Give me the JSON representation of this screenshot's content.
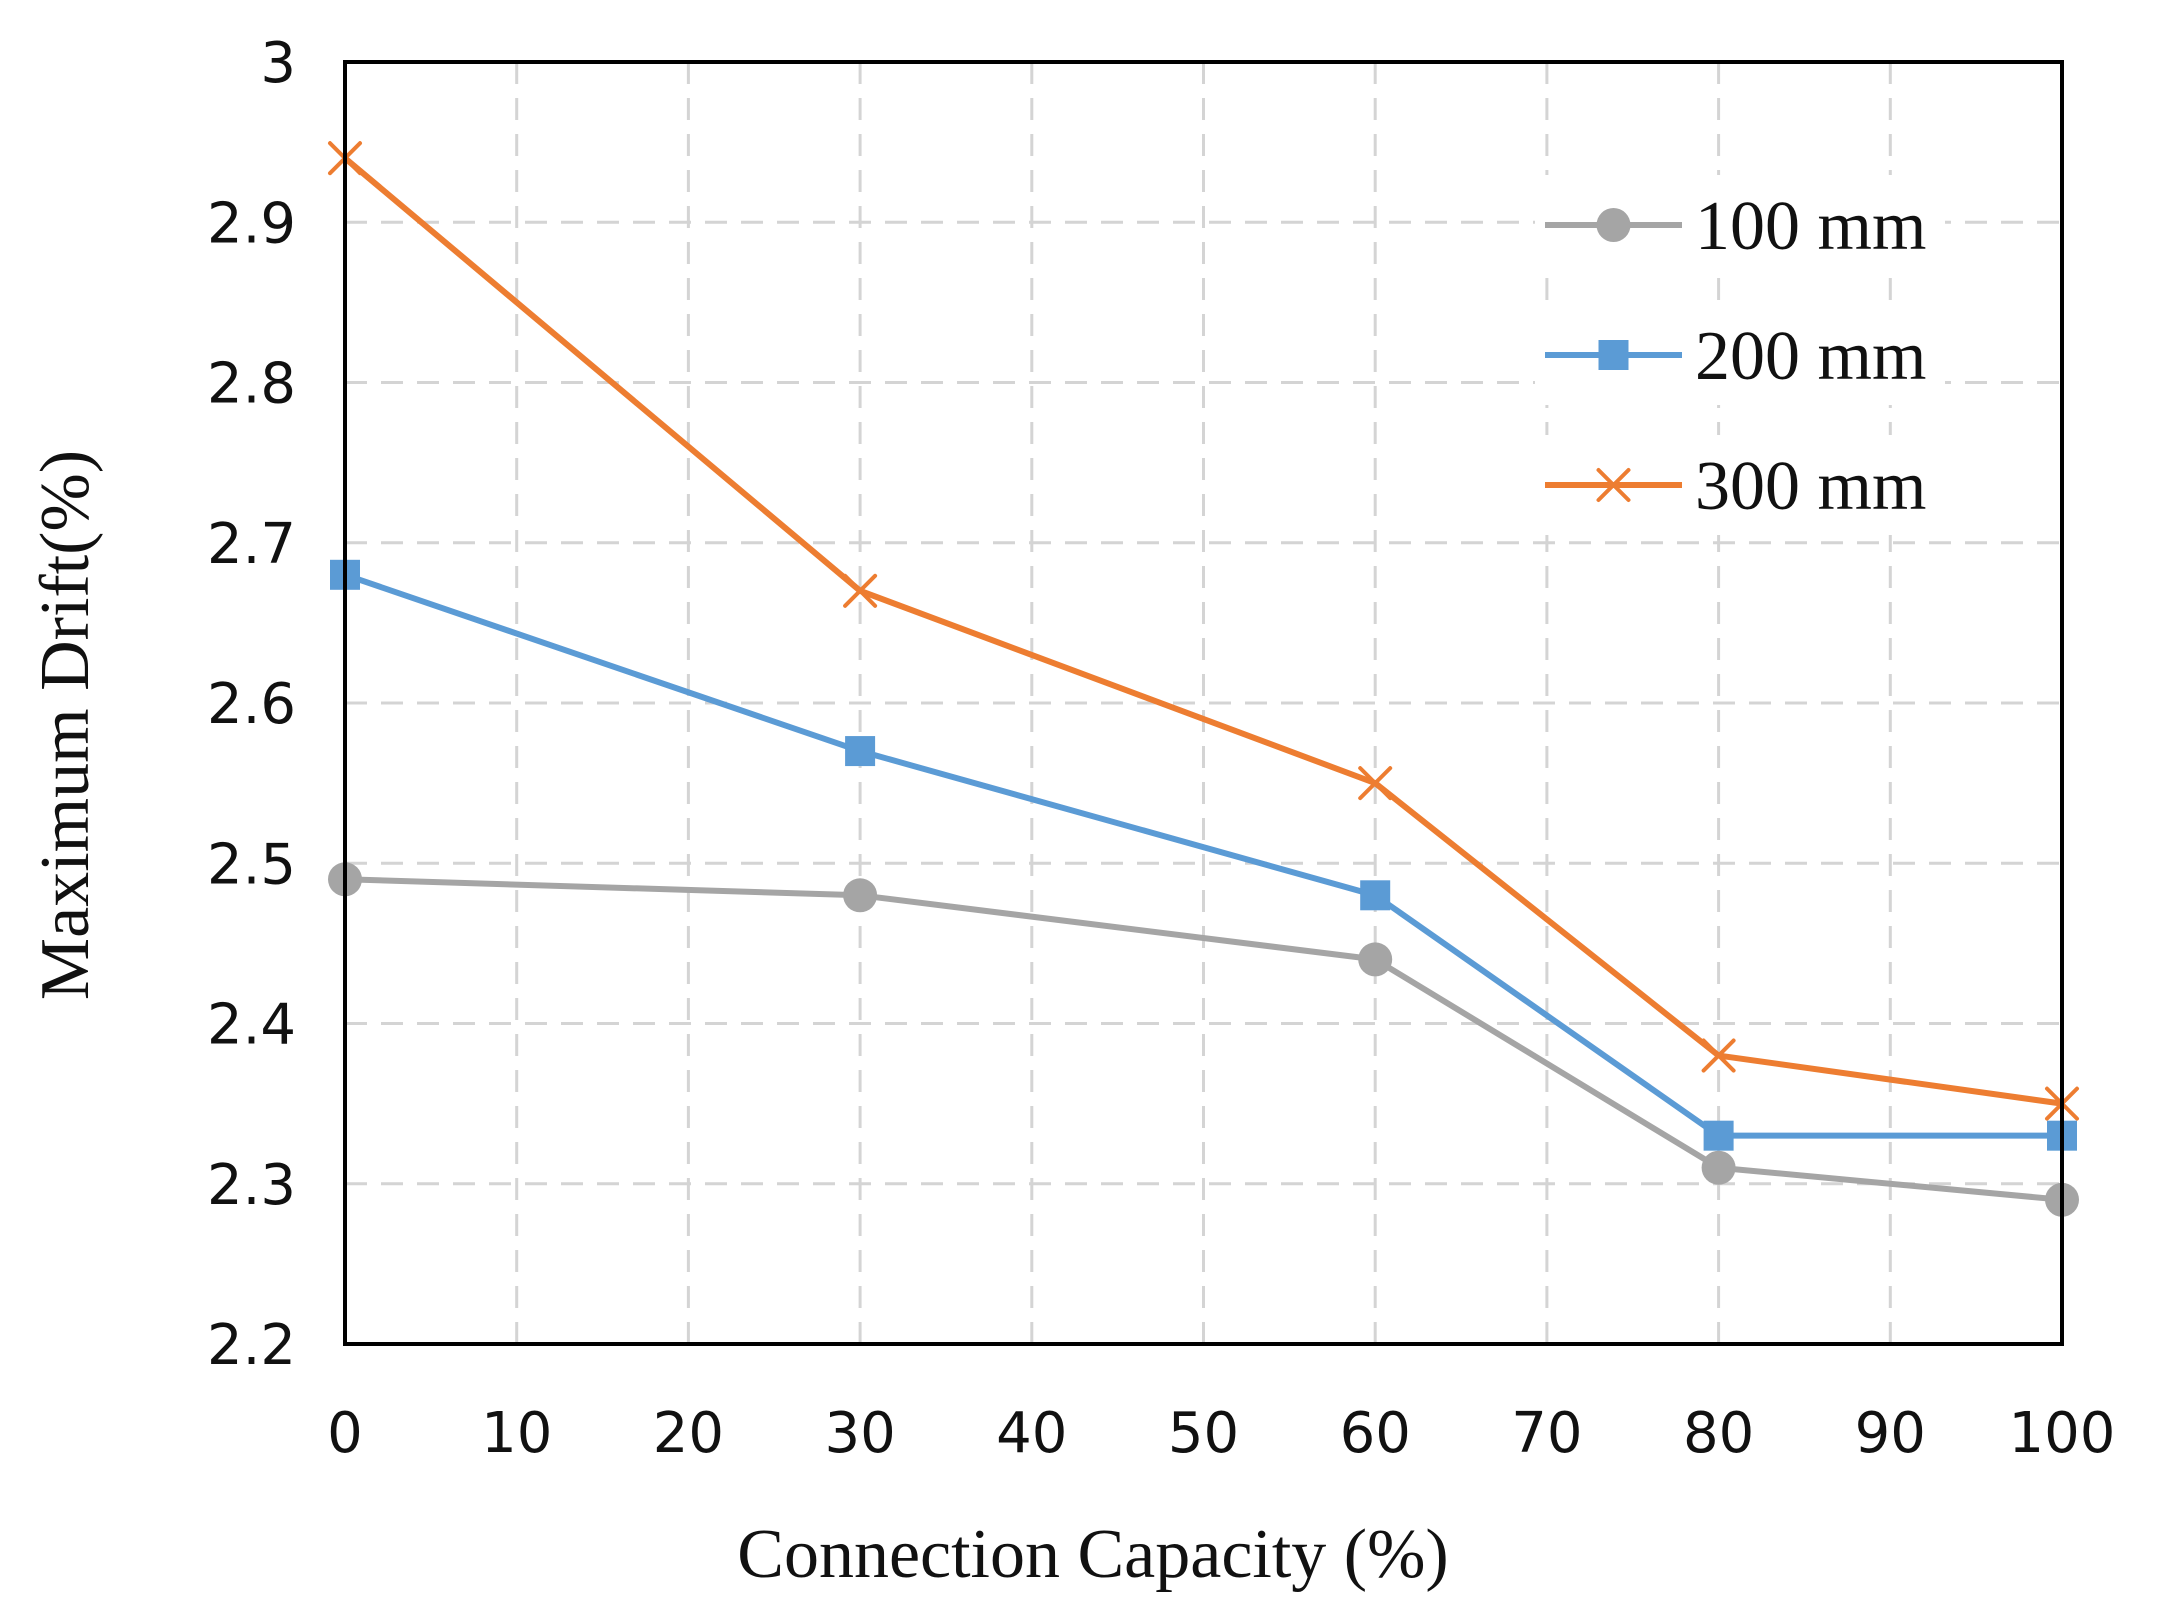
{
  "chart_data": {
    "type": "line",
    "title": "",
    "xlabel": "Connection Capacity (%)",
    "ylabel": "Maximum Drift(%)",
    "xlim": [
      0,
      100
    ],
    "ylim": [
      2.2,
      3
    ],
    "xticks": [
      "0",
      "10",
      "20",
      "30",
      "40",
      "50",
      "60",
      "70",
      "80",
      "90",
      "100"
    ],
    "yticks": [
      "2.2",
      "2.3",
      "2.4",
      "2.5",
      "2.6",
      "2.7",
      "2.8",
      "2.9",
      "3"
    ],
    "grid": true,
    "legend_position": "top-right",
    "series": [
      {
        "name": "100 mm",
        "color": "#a5a5a5",
        "marker": "circle",
        "x": [
          0,
          30,
          60,
          80,
          100
        ],
        "values": [
          2.49,
          2.48,
          2.44,
          2.31,
          2.29
        ]
      },
      {
        "name": "200 mm",
        "color": "#5b9bd5",
        "marker": "square",
        "x": [
          0,
          30,
          60,
          80,
          100
        ],
        "values": [
          2.68,
          2.57,
          2.48,
          2.33,
          2.33
        ]
      },
      {
        "name": "300 mm",
        "color": "#ed7d31",
        "marker": "x",
        "x": [
          0,
          30,
          60,
          80,
          100
        ],
        "values": [
          2.94,
          2.67,
          2.55,
          2.38,
          2.35
        ]
      }
    ]
  }
}
